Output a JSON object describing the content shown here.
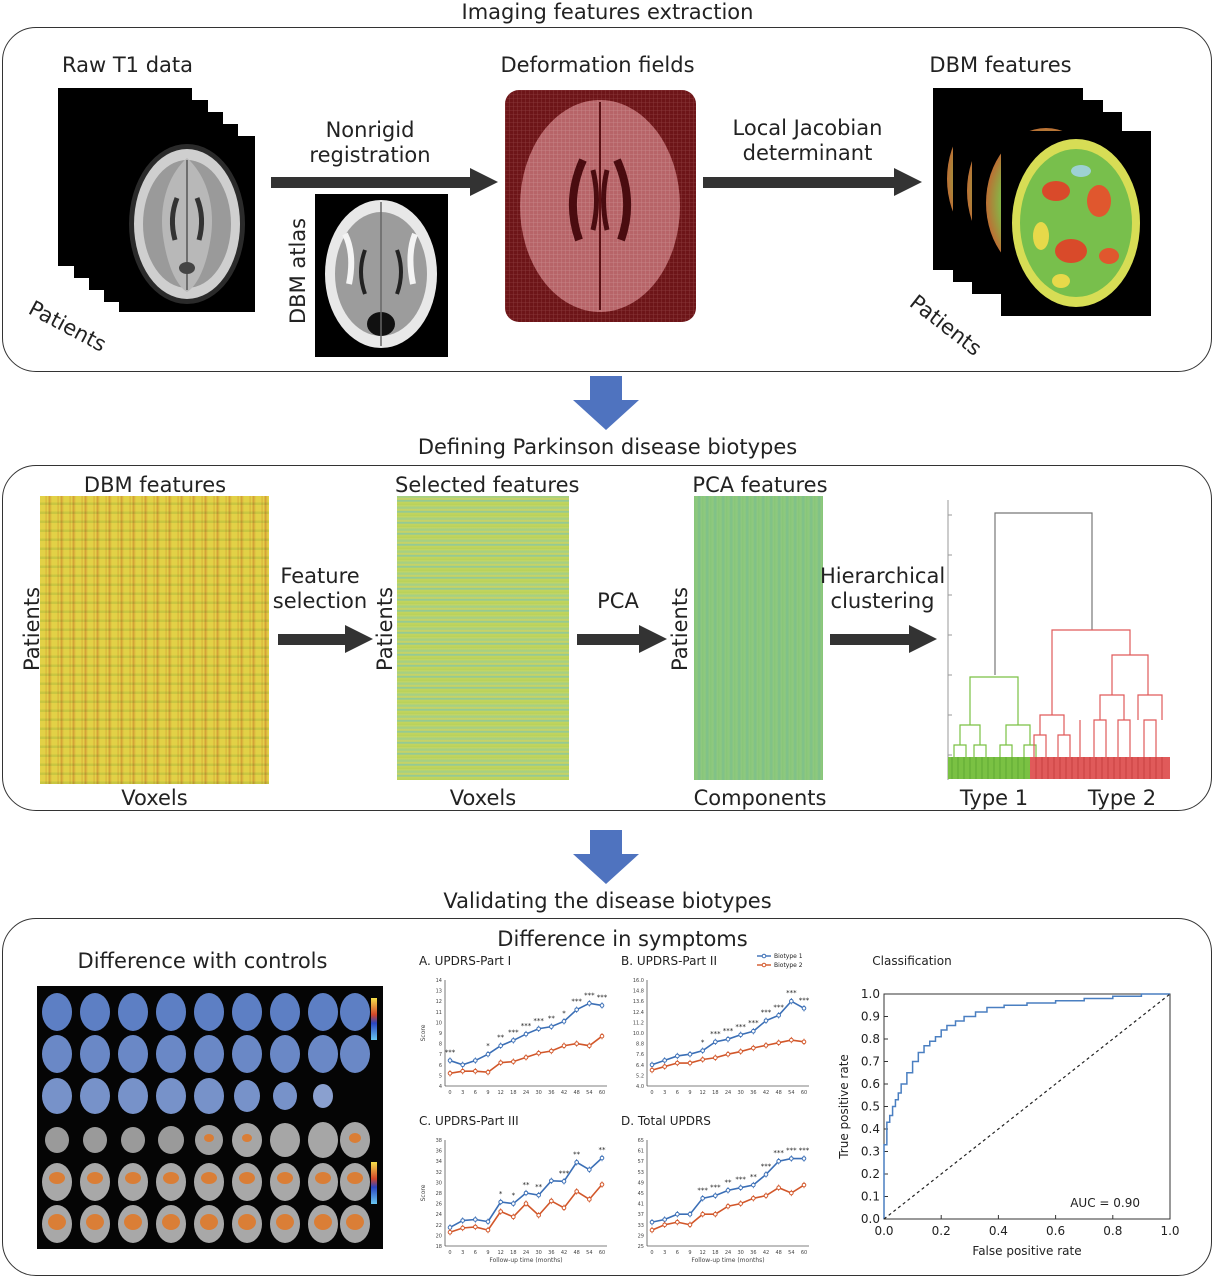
{
  "sections": {
    "s1": "Imaging features extraction",
    "s2": "Defining Parkinson disease biotypes",
    "s3": "Validating the disease biotypes"
  },
  "extraction": {
    "raw_t1": "Raw T1 data",
    "patients_a": "Patients",
    "nonrigid_1": "Nonrigid",
    "nonrigid_2": "registration",
    "dbm_atlas": "DBM atlas",
    "deformation": "Deformation fields",
    "jacobian_1": "Local Jacobian",
    "jacobian_2": "determinant",
    "dbm_features": "DBM features",
    "patients_b": "Patients"
  },
  "biotypes": {
    "dbm_features": "DBM features",
    "patients_1": "Patients",
    "voxels_1": "Voxels",
    "feature_sel_1": "Feature",
    "feature_sel_2": "selection",
    "selected": "Selected features",
    "patients_2": "Patients",
    "voxels_2": "Voxels",
    "pca": "PCA",
    "pca_features": "PCA features",
    "patients_3": "Patients",
    "components": "Components",
    "hier_1": "Hierarchical",
    "hier_2": "clustering",
    "type1": "Type 1",
    "type2": "Type 2"
  },
  "validation": {
    "diff_controls": "Difference with controls",
    "diff_symptoms": "Difference in symptoms",
    "legend_b1": "Biotype 1",
    "legend_b2": "Biotype 2",
    "panel_a": "A. UPDRS-Part I",
    "panel_b": "B. UPDRS-Part II",
    "panel_c": "C. UPDRS-Part III",
    "panel_d": "D. Total UPDRS",
    "score": "Score",
    "followup": "Follow-up time (months)",
    "classification": "Classification",
    "tpr": "True positive rate",
    "fpr": "False positive rate",
    "auc": "AUC = 0.90"
  },
  "colors": {
    "arrow_blue": "#4f73bf",
    "biotype1": "#3b6fb6",
    "biotype2": "#d2572a",
    "type1": "#7ac143",
    "type2": "#e05a5a",
    "roc": "#4a7fc1"
  },
  "chart_data": [
    {
      "type": "line",
      "title": "A. UPDRS-Part I",
      "xlabel": "",
      "ylabel": "Score",
      "x": [
        0,
        3,
        6,
        9,
        12,
        18,
        24,
        30,
        36,
        42,
        48,
        54,
        60
      ],
      "ylim": [
        4,
        14
      ],
      "series": [
        {
          "name": "Biotype 1",
          "values": [
            6.4,
            6.0,
            6.4,
            7.0,
            7.8,
            8.3,
            8.9,
            9.4,
            9.6,
            10.1,
            11.2,
            11.8,
            11.6
          ]
        },
        {
          "name": "Biotype 2",
          "values": [
            5.2,
            5.4,
            5.4,
            5.3,
            6.2,
            6.3,
            6.7,
            7.1,
            7.3,
            7.8,
            8.0,
            7.8,
            8.7
          ]
        }
      ],
      "xticks": [
        "0",
        "3",
        "6",
        "9",
        "12",
        "18",
        "24",
        "30",
        "36",
        "42",
        "48",
        "54",
        "60"
      ],
      "yticks": [
        "4",
        "5",
        "6",
        "7",
        "8",
        "9",
        "10",
        "11",
        "12",
        "13",
        "14"
      ],
      "annotations": [
        "***",
        "",
        "",
        "*",
        "**",
        "***",
        "***",
        "***",
        "**",
        "*",
        "***",
        "***",
        "***"
      ]
    },
    {
      "type": "line",
      "title": "B. UPDRS-Part II",
      "xlabel": "",
      "ylabel": "",
      "x": [
        0,
        3,
        6,
        9,
        12,
        18,
        24,
        30,
        36,
        42,
        48,
        54,
        60
      ],
      "ylim": [
        4,
        16
      ],
      "series": [
        {
          "name": "Biotype 1",
          "values": [
            6.4,
            6.9,
            7.4,
            7.6,
            8.0,
            9.0,
            9.3,
            9.8,
            10.2,
            11.4,
            12.0,
            13.6,
            12.8
          ]
        },
        {
          "name": "Biotype 2",
          "values": [
            5.8,
            6.2,
            6.6,
            6.6,
            7.0,
            7.2,
            7.6,
            7.9,
            8.3,
            8.6,
            8.9,
            9.2,
            9.0
          ]
        }
      ],
      "xticks": [
        "0",
        "3",
        "6",
        "9",
        "12",
        "18",
        "24",
        "30",
        "36",
        "42",
        "48",
        "54",
        "60"
      ],
      "yticks": [
        "4.0",
        "5.2",
        "6.4",
        "7.6",
        "8.8",
        "10.0",
        "11.2",
        "12.4",
        "13.6",
        "14.8",
        "16.0"
      ],
      "annotations": [
        "",
        "",
        "",
        "",
        "*",
        "***",
        "***",
        "***",
        "***",
        "***",
        "***",
        "***",
        "***"
      ]
    },
    {
      "type": "line",
      "title": "C. UPDRS-Part III",
      "xlabel": "Follow-up time (months)",
      "ylabel": "Score",
      "x": [
        0,
        3,
        6,
        9,
        12,
        18,
        24,
        30,
        36,
        42,
        48,
        54,
        60
      ],
      "ylim": [
        18,
        38
      ],
      "series": [
        {
          "name": "Biotype 1",
          "values": [
            21.5,
            22.8,
            23.0,
            22.6,
            26.3,
            26.0,
            28.0,
            27.6,
            30.3,
            30.2,
            33.8,
            32.4,
            34.6
          ]
        },
        {
          "name": "Biotype 2",
          "values": [
            20.6,
            21.4,
            21.6,
            21.0,
            24.5,
            23.5,
            26.0,
            23.8,
            26.5,
            25.2,
            28.3,
            26.8,
            29.6
          ]
        }
      ],
      "xticks": [
        "0",
        "3",
        "6",
        "9",
        "12",
        "18",
        "24",
        "30",
        "36",
        "42",
        "48",
        "54",
        "60"
      ],
      "yticks": [
        "18",
        "20",
        "22",
        "24",
        "26",
        "28",
        "30",
        "32",
        "34",
        "36",
        "38"
      ],
      "annotations": [
        "",
        "",
        "",
        "",
        "*",
        "*",
        "**",
        "**",
        "",
        "***",
        "**",
        "",
        "**"
      ]
    },
    {
      "type": "line",
      "title": "D. Total UPDRS",
      "xlabel": "Follow-up time (months)",
      "ylabel": "",
      "x": [
        0,
        3,
        6,
        9,
        12,
        18,
        24,
        30,
        36,
        42,
        48,
        54,
        60
      ],
      "ylim": [
        25,
        65
      ],
      "series": [
        {
          "name": "Biotype 1",
          "values": [
            34,
            35,
            37,
            37,
            43,
            44,
            46,
            47,
            48,
            52,
            57,
            58,
            58
          ]
        },
        {
          "name": "Biotype 2",
          "values": [
            31,
            33,
            34,
            33,
            37,
            37,
            40,
            41,
            43,
            44,
            47,
            45,
            48
          ]
        }
      ],
      "xticks": [
        "0",
        "3",
        "6",
        "9",
        "12",
        "18",
        "24",
        "30",
        "36",
        "42",
        "48",
        "54",
        "60"
      ],
      "yticks": [
        "25",
        "29",
        "33",
        "37",
        "41",
        "45",
        "49",
        "53",
        "57",
        "61",
        "65"
      ],
      "annotations": [
        "",
        "",
        "",
        "",
        "***",
        "***",
        "**",
        "***",
        "**",
        "***",
        "***",
        "***",
        "***"
      ]
    },
    {
      "type": "line",
      "title": "Classification",
      "xlabel": "False positive rate",
      "ylabel": "True positive rate",
      "xlim": [
        0,
        1
      ],
      "ylim": [
        0,
        1
      ],
      "xticks": [
        "0.0",
        "0.2",
        "0.4",
        "0.6",
        "0.8",
        "1.0"
      ],
      "yticks": [
        "0.0",
        "0.1",
        "0.2",
        "0.3",
        "0.4",
        "0.5",
        "0.6",
        "0.7",
        "0.8",
        "0.9",
        "1.0"
      ],
      "series": [
        {
          "name": "",
          "x": [
            0,
            0,
            0.01,
            0.01,
            0.02,
            0.03,
            0.04,
            0.05,
            0.06,
            0.08,
            0.1,
            0.12,
            0.14,
            0.16,
            0.18,
            0.2,
            0.22,
            0.25,
            0.28,
            0.32,
            0.36,
            0.42,
            0.5,
            0.6,
            0.7,
            0.8,
            0.9,
            1.0
          ],
          "y": [
            0,
            0.33,
            0.4,
            0.43,
            0.46,
            0.5,
            0.53,
            0.56,
            0.6,
            0.65,
            0.7,
            0.74,
            0.77,
            0.79,
            0.81,
            0.84,
            0.86,
            0.88,
            0.9,
            0.92,
            0.94,
            0.95,
            0.96,
            0.97,
            0.98,
            0.99,
            1.0,
            1.0
          ]
        },
        {
          "name": "",
          "x": [
            0,
            1
          ],
          "y": [
            0,
            1
          ]
        }
      ],
      "annotations": [
        "AUC = 0.90"
      ]
    }
  ]
}
